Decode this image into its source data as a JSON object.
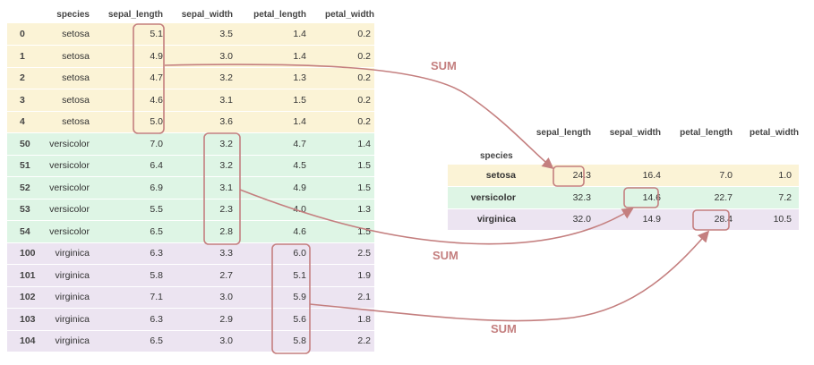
{
  "columns": [
    "species",
    "sepal_length",
    "sepal_width",
    "petal_length",
    "petal_width"
  ],
  "left_rows": [
    {
      "idx": "0",
      "species": "setosa",
      "vals": [
        "5.1",
        "3.5",
        "1.4",
        "0.2"
      ],
      "group": "setosa"
    },
    {
      "idx": "1",
      "species": "setosa",
      "vals": [
        "4.9",
        "3.0",
        "1.4",
        "0.2"
      ],
      "group": "setosa"
    },
    {
      "idx": "2",
      "species": "setosa",
      "vals": [
        "4.7",
        "3.2",
        "1.3",
        "0.2"
      ],
      "group": "setosa"
    },
    {
      "idx": "3",
      "species": "setosa",
      "vals": [
        "4.6",
        "3.1",
        "1.5",
        "0.2"
      ],
      "group": "setosa"
    },
    {
      "idx": "4",
      "species": "setosa",
      "vals": [
        "5.0",
        "3.6",
        "1.4",
        "0.2"
      ],
      "group": "setosa"
    },
    {
      "idx": "50",
      "species": "versicolor",
      "vals": [
        "7.0",
        "3.2",
        "4.7",
        "1.4"
      ],
      "group": "versicolor"
    },
    {
      "idx": "51",
      "species": "versicolor",
      "vals": [
        "6.4",
        "3.2",
        "4.5",
        "1.5"
      ],
      "group": "versicolor"
    },
    {
      "idx": "52",
      "species": "versicolor",
      "vals": [
        "6.9",
        "3.1",
        "4.9",
        "1.5"
      ],
      "group": "versicolor"
    },
    {
      "idx": "53",
      "species": "versicolor",
      "vals": [
        "5.5",
        "2.3",
        "4.0",
        "1.3"
      ],
      "group": "versicolor"
    },
    {
      "idx": "54",
      "species": "versicolor",
      "vals": [
        "6.5",
        "2.8",
        "4.6",
        "1.5"
      ],
      "group": "versicolor"
    },
    {
      "idx": "100",
      "species": "virginica",
      "vals": [
        "6.3",
        "3.3",
        "6.0",
        "2.5"
      ],
      "group": "virginica"
    },
    {
      "idx": "101",
      "species": "virginica",
      "vals": [
        "5.8",
        "2.7",
        "5.1",
        "1.9"
      ],
      "group": "virginica"
    },
    {
      "idx": "102",
      "species": "virginica",
      "vals": [
        "7.1",
        "3.0",
        "5.9",
        "2.1"
      ],
      "group": "virginica"
    },
    {
      "idx": "103",
      "species": "virginica",
      "vals": [
        "6.3",
        "2.9",
        "5.6",
        "1.8"
      ],
      "group": "virginica"
    },
    {
      "idx": "104",
      "species": "virginica",
      "vals": [
        "6.5",
        "3.0",
        "5.8",
        "2.2"
      ],
      "group": "virginica"
    }
  ],
  "right_columns": [
    "sepal_length",
    "sepal_width",
    "petal_length",
    "petal_width"
  ],
  "right_index_name": "species",
  "right_rows": [
    {
      "species": "setosa",
      "vals": [
        "24.3",
        "16.4",
        "7.0",
        "1.0"
      ],
      "group": "setosa"
    },
    {
      "species": "versicolor",
      "vals": [
        "32.3",
        "14.6",
        "22.7",
        "7.2"
      ],
      "group": "versicolor"
    },
    {
      "species": "virginica",
      "vals": [
        "32.0",
        "14.9",
        "28.4",
        "10.5"
      ],
      "group": "virginica"
    }
  ],
  "sum_labels": [
    "SUM",
    "SUM",
    "SUM"
  ],
  "colors": {
    "setosa": "#fbf3d6",
    "versicolor": "#def5e5",
    "virginica": "#ece4f1",
    "accent": "#c47f7f"
  }
}
